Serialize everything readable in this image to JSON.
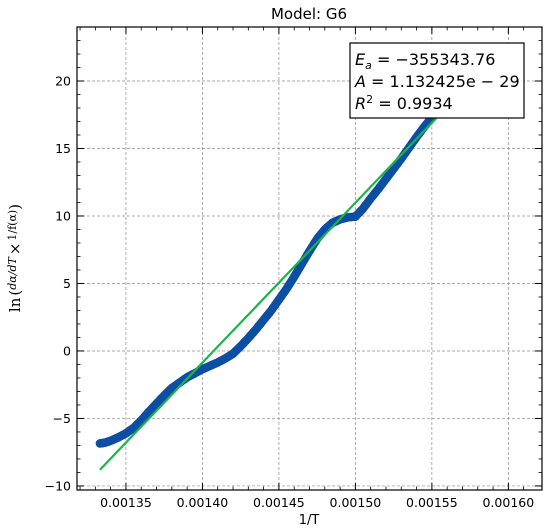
{
  "chart_data": {
    "type": "scatter",
    "title": "Model: G6",
    "xlabel": "1/T",
    "ylabel": "ln(dα/dT × 1/f(α))",
    "xlim": [
      0.001318,
      0.001622
    ],
    "ylim": [
      -10.3,
      24
    ],
    "xticks": [
      0.00135,
      0.0014,
      0.00145,
      0.0015,
      0.00155,
      0.0016
    ],
    "xtick_labels": [
      "0.00135",
      "0.00140",
      "0.00145",
      "0.00150",
      "0.00155",
      "0.00160"
    ],
    "yticks": [
      -10,
      -5,
      0,
      5,
      10,
      15,
      20
    ],
    "ytick_labels": [
      "−10",
      "−5",
      "0",
      "5",
      "10",
      "15",
      "20"
    ],
    "grid": true,
    "grid_style": "dashed",
    "colors": {
      "data": "#0c4ea2",
      "fit": "#1bb34a"
    },
    "series": [
      {
        "role": "data",
        "marker": "circle",
        "points": [
          [
            0.001333,
            -6.85
          ],
          [
            0.001336,
            -6.8
          ],
          [
            0.00134,
            -6.65
          ],
          [
            0.001345,
            -6.4
          ],
          [
            0.00135,
            -6.1
          ],
          [
            0.001355,
            -5.7
          ],
          [
            0.00136,
            -5.15
          ],
          [
            0.001365,
            -4.5
          ],
          [
            0.00137,
            -3.9
          ],
          [
            0.001375,
            -3.3
          ],
          [
            0.00138,
            -2.75
          ],
          [
            0.001385,
            -2.35
          ],
          [
            0.00139,
            -1.95
          ],
          [
            0.001395,
            -1.65
          ],
          [
            0.0014,
            -1.35
          ],
          [
            0.001405,
            -1.1
          ],
          [
            0.00141,
            -0.85
          ],
          [
            0.001415,
            -0.55
          ],
          [
            0.00142,
            -0.2
          ],
          [
            0.001425,
            0.35
          ],
          [
            0.00143,
            0.95
          ],
          [
            0.001435,
            1.6
          ],
          [
            0.00144,
            2.3
          ],
          [
            0.001445,
            3.0
          ],
          [
            0.00145,
            3.8
          ],
          [
            0.001455,
            4.6
          ],
          [
            0.00146,
            5.5
          ],
          [
            0.001465,
            6.45
          ],
          [
            0.00147,
            7.4
          ],
          [
            0.001475,
            8.3
          ],
          [
            0.00148,
            9.0
          ],
          [
            0.001485,
            9.5
          ],
          [
            0.00149,
            9.75
          ],
          [
            0.001495,
            9.9
          ],
          [
            0.0015,
            9.95
          ],
          [
            0.001505,
            10.55
          ],
          [
            0.00151,
            11.3
          ],
          [
            0.001515,
            12.0
          ],
          [
            0.00152,
            12.75
          ],
          [
            0.001525,
            13.5
          ],
          [
            0.00153,
            14.25
          ],
          [
            0.001535,
            15.05
          ],
          [
            0.00154,
            15.85
          ],
          [
            0.001545,
            16.6
          ],
          [
            0.00155,
            17.3
          ],
          [
            0.001555,
            17.85
          ]
        ]
      },
      {
        "role": "fit",
        "line": true,
        "points": [
          [
            0.001333,
            -8.8
          ],
          [
            0.001558,
            17.85
          ]
        ]
      }
    ],
    "annotation": {
      "lines": [
        {
          "lhs_main": "E",
          "lhs_sub": "a",
          "eq": " = −355343.76"
        },
        {
          "lhs_main": "A",
          "eq": " = 1.132425e − 29"
        },
        {
          "lhs_main": "R",
          "lhs_sup": "2",
          "eq": " = 0.9934"
        }
      ],
      "placement": "top-right"
    }
  }
}
